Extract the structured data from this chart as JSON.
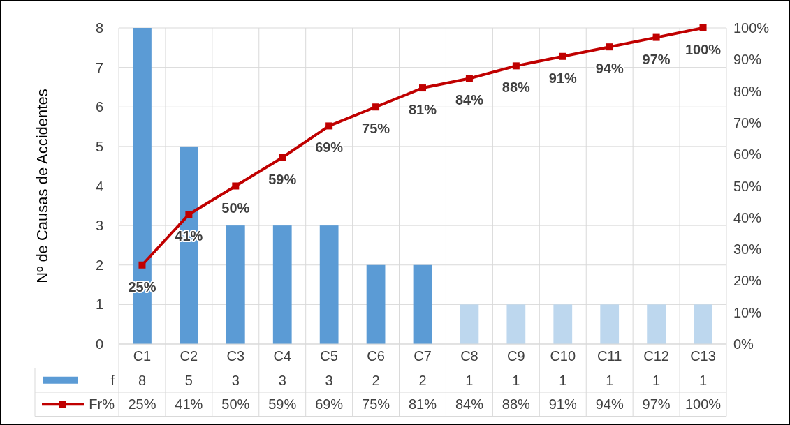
{
  "chart_data": {
    "type": "bar",
    "ylabel": "Nº de Causas de Accidentes",
    "categories": [
      "C1",
      "C2",
      "C3",
      "C4",
      "C5",
      "C6",
      "C7",
      "C8",
      "C9",
      "C10",
      "C11",
      "C12",
      "C13"
    ],
    "series": [
      {
        "name": "f",
        "color": "#5b9bd5",
        "colors": [
          "#5b9bd5",
          "#5b9bd5",
          "#5b9bd5",
          "#5b9bd5",
          "#5b9bd5",
          "#5b9bd5",
          "#5b9bd5",
          "#bdd7ee",
          "#bdd7ee",
          "#bdd7ee",
          "#bdd7ee",
          "#bdd7ee",
          "#bdd7ee"
        ],
        "values": [
          8,
          5,
          3,
          3,
          3,
          2,
          2,
          1,
          1,
          1,
          1,
          1,
          1
        ],
        "value_labels": [
          "8",
          "5",
          "3",
          "3",
          "3",
          "2",
          "2",
          "1",
          "1",
          "1",
          "1",
          "1",
          "1"
        ]
      },
      {
        "name": "Fr%",
        "type": "line",
        "axis": "y2",
        "color": "#c00000",
        "values": [
          25,
          41,
          50,
          59,
          69,
          75,
          81,
          84,
          88,
          91,
          94,
          97,
          100
        ],
        "value_labels": [
          "25%",
          "41%",
          "50%",
          "59%",
          "69%",
          "75%",
          "81%",
          "84%",
          "88%",
          "91%",
          "94%",
          "97%",
          "100%"
        ]
      }
    ],
    "ylim": [
      0,
      8
    ],
    "yticks": [
      0,
      1,
      2,
      3,
      4,
      5,
      6,
      7,
      8
    ],
    "y2lim": [
      0,
      100
    ],
    "y2ticks": [
      {
        "value": 0,
        "label": "0%"
      },
      {
        "value": 10,
        "label": "10%"
      },
      {
        "value": 20,
        "label": "20%"
      },
      {
        "value": 30,
        "label": "30%"
      },
      {
        "value": 40,
        "label": "40%"
      },
      {
        "value": 50,
        "label": "50%"
      },
      {
        "value": 60,
        "label": "60%"
      },
      {
        "value": 70,
        "label": "70%"
      },
      {
        "value": 80,
        "label": "80%"
      },
      {
        "value": 90,
        "label": "90%"
      },
      {
        "value": 100,
        "label": "100%"
      }
    ],
    "grid": true,
    "legend": "bottom left",
    "marker": "square",
    "line_style": "solid"
  }
}
